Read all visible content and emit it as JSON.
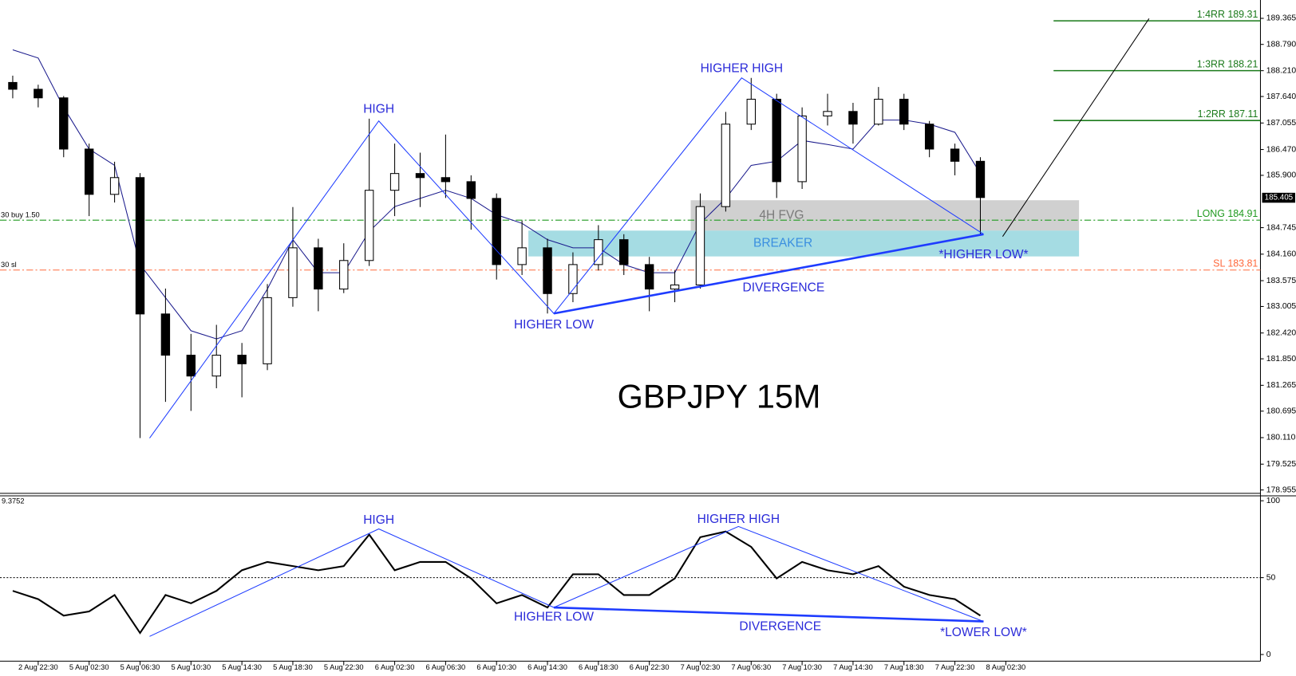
{
  "chart_data": [
    {
      "type": "candlestick",
      "title": "GBPJPY 15M",
      "x": [
        -8,
        0,
        8,
        16,
        24,
        32,
        40,
        48,
        56,
        64,
        72,
        80,
        88,
        96,
        104,
        112,
        120,
        128,
        136,
        144,
        152,
        160,
        168,
        176,
        184,
        192,
        200,
        208,
        216,
        224,
        232,
        240,
        248,
        256,
        264,
        272,
        280,
        288,
        296
      ],
      "open": [
        187.95,
        187.8,
        187.61,
        186.48,
        185.48,
        185.85,
        182.84,
        181.93,
        181.47,
        181.93,
        181.74,
        183.2,
        184.3,
        183.39,
        184.02,
        185.57,
        185.94,
        185.85,
        185.76,
        185.39,
        183.93,
        184.3,
        183.29,
        183.93,
        184.48,
        183.93,
        183.39,
        183.48,
        185.21,
        187.03,
        187.58,
        185.76,
        187.21,
        187.31,
        187.03,
        187.58,
        187.03,
        186.48,
        186.21
      ],
      "high": [
        188.1,
        187.9,
        187.65,
        186.6,
        186.2,
        185.95,
        183.4,
        182.4,
        182.6,
        182.2,
        183.5,
        185.2,
        184.5,
        184.4,
        187.15,
        186.6,
        186.4,
        186.8,
        185.9,
        185.5,
        184.9,
        184.5,
        184.2,
        184.8,
        184.6,
        184.1,
        183.8,
        185.5,
        187.3,
        188.05,
        187.7,
        187.4,
        187.7,
        187.5,
        187.85,
        187.7,
        187.1,
        186.6,
        186.3
      ],
      "low": [
        187.6,
        187.4,
        186.3,
        185.0,
        185.3,
        180.1,
        180.9,
        180.7,
        181.2,
        181.0,
        181.6,
        183.0,
        182.9,
        183.3,
        183.9,
        185.0,
        185.2,
        185.4,
        184.7,
        183.6,
        183.7,
        182.85,
        183.1,
        183.8,
        183.7,
        182.9,
        183.1,
        183.4,
        185.1,
        186.9,
        185.4,
        185.6,
        187.0,
        186.6,
        187.0,
        186.9,
        186.3,
        185.9,
        184.6
      ],
      "close": [
        187.8,
        187.61,
        186.48,
        185.48,
        185.85,
        182.84,
        181.93,
        181.47,
        181.93,
        181.74,
        183.2,
        184.3,
        183.39,
        184.02,
        185.57,
        185.94,
        185.85,
        185.76,
        185.39,
        183.93,
        184.3,
        183.29,
        183.93,
        184.48,
        183.93,
        183.39,
        183.48,
        185.21,
        187.03,
        187.58,
        185.76,
        187.21,
        187.31,
        187.03,
        187.58,
        187.03,
        186.48,
        186.21,
        185.41
      ],
      "up_color": "#ffffff",
      "down_color": "#000000",
      "wick_color": "#000000",
      "channel": {
        "color": "#1a1a8c",
        "values": [
          188.67,
          188.49,
          187.4,
          186.48,
          186.12,
          183.93,
          183.2,
          182.47,
          182.29,
          182.47,
          183.39,
          184.48,
          183.75,
          183.75,
          184.66,
          185.21,
          185.39,
          185.57,
          185.39,
          185.03,
          184.84,
          184.48,
          184.3,
          184.3,
          183.93,
          183.75,
          183.75,
          184.84,
          185.39,
          186.12,
          186.21,
          186.67,
          186.58,
          186.48,
          187.12,
          187.12,
          187.03,
          186.85,
          185.94
        ]
      },
      "zigzag": {
        "color": "#1e3cff",
        "text_color": "#2b2bd9",
        "x": [
          35,
          107,
          162,
          221,
          297
        ],
        "values": [
          180.1,
          187.1,
          182.85,
          188.05,
          184.6
        ],
        "point_labels": [
          null,
          "HIGH",
          "HIGHER LOW",
          "HIGHER HIGH",
          "*HIGHER LOW*"
        ],
        "divergence_label": "DIVERGENCE"
      },
      "zones": [
        {
          "label": "4H FVG",
          "x": [
            205,
            327
          ],
          "range": [
            184.68,
            185.35
          ],
          "color": "#c4c4c4",
          "text_color": "#7a7a7a"
        },
        {
          "label": "BREAKER",
          "x": [
            154,
            327
          ],
          "range": [
            184.11,
            184.68
          ],
          "color": "#8fd3dc",
          "text_color": "#3a8fe0"
        }
      ],
      "levels": [
        {
          "label": "LONG 184.91",
          "value": 184.91,
          "color": "#1f9a1f",
          "style": "dashdot",
          "tag": "30 buy 1.50"
        },
        {
          "label": "SL 183.81",
          "value": 183.81,
          "color": "#ff6a3d",
          "style": "dashdot",
          "tag": "30 sl"
        },
        {
          "label": "1:2RR 187.11",
          "value": 187.11,
          "color": "#1a7a1a",
          "style": "solid",
          "x_start": 319
        },
        {
          "label": "1:3RR 188.21",
          "value": 188.21,
          "color": "#1a7a1a",
          "style": "solid",
          "x_start": 319
        },
        {
          "label": "1:4RR 189.31",
          "value": 189.31,
          "color": "#1a7a1a",
          "style": "solid",
          "x_start": 319
        }
      ],
      "projection": {
        "color": "#000000",
        "x": [
          303,
          349
        ],
        "values": [
          184.55,
          189.36
        ]
      },
      "last_price": 185.405,
      "xlim": [
        -12,
        384
      ],
      "ylim": [
        178.88,
        189.77
      ],
      "yticks": [
        189.365,
        {
          "value": 188.79,
          "label": "188.790"
        },
        {
          "value": 188.21,
          "label": "188.210"
        },
        {
          "value": 187.64,
          "label": "187.640"
        },
        187.055,
        {
          "value": 186.47,
          "label": "186.470"
        },
        {
          "value": 185.9,
          "label": "185.900"
        },
        184.745,
        {
          "value": 184.16,
          "label": "184.160"
        },
        183.575,
        183.005,
        {
          "value": 182.42,
          "label": "182.420"
        },
        {
          "value": 181.85,
          "label": "181.850"
        },
        181.265,
        180.695,
        {
          "value": 180.11,
          "label": "180.110"
        },
        179.525,
        178.955
      ]
    },
    {
      "type": "line",
      "indicator_label": "9.3752",
      "color": "#000000",
      "x": [
        -8,
        0,
        8,
        16,
        24,
        32,
        40,
        48,
        56,
        64,
        72,
        80,
        88,
        96,
        104,
        112,
        120,
        128,
        136,
        144,
        152,
        160,
        168,
        176,
        184,
        192,
        200,
        208,
        216,
        224,
        232,
        240,
        248,
        256,
        264,
        272,
        280,
        288,
        296
      ],
      "values": [
        41.4,
        36.0,
        25.3,
        28.0,
        38.7,
        14.0,
        38.7,
        33.3,
        41.4,
        54.8,
        60.2,
        57.5,
        54.8,
        57.5,
        78.0,
        54.8,
        60.2,
        60.2,
        49.5,
        33.3,
        38.7,
        30.6,
        52.2,
        52.2,
        38.7,
        38.7,
        49.5,
        76.3,
        80.0,
        70.0,
        49.5,
        60.2,
        54.8,
        52.2,
        57.5,
        44.1,
        38.7,
        36.0,
        25.3
      ],
      "reference_line": 50,
      "zigzag": {
        "color": "#1e3cff",
        "text_color": "#2b2bd9",
        "x": [
          35,
          107,
          162,
          220,
          297
        ],
        "values": [
          11.8,
          81.7,
          30.6,
          83.3,
          21.5
        ],
        "point_labels": [
          null,
          "HIGH",
          "HIGHER LOW",
          "HIGHER HIGH",
          "*LOWER LOW*"
        ],
        "divergence_label": "DIVERGENCE"
      },
      "xlim": [
        -12,
        384
      ],
      "ylim": [
        -4.3,
        103.2
      ],
      "yticks": [
        0,
        50,
        100
      ],
      "xticks": [
        {
          "value": 0,
          "label": "2 Aug 22:30"
        },
        {
          "value": 16,
          "label": "5 Aug 02:30"
        },
        {
          "value": 32,
          "label": "5 Aug 06:30"
        },
        {
          "value": 48,
          "label": "5 Aug 10:30"
        },
        {
          "value": 64,
          "label": "5 Aug 14:30"
        },
        {
          "value": 80,
          "label": "5 Aug 18:30"
        },
        {
          "value": 96,
          "label": "5 Aug 22:30"
        },
        {
          "value": 112,
          "label": "6 Aug 02:30"
        },
        {
          "value": 128,
          "label": "6 Aug 06:30"
        },
        {
          "value": 144,
          "label": "6 Aug 10:30"
        },
        {
          "value": 160,
          "label": "6 Aug 14:30"
        },
        {
          "value": 176,
          "label": "6 Aug 18:30"
        },
        {
          "value": 192,
          "label": "6 Aug 22:30"
        },
        {
          "value": 208,
          "label": "7 Aug 02:30"
        },
        {
          "value": 224,
          "label": "7 Aug 06:30"
        },
        {
          "value": 240,
          "label": "7 Aug 10:30"
        },
        {
          "value": 256,
          "label": "7 Aug 14:30"
        },
        {
          "value": 272,
          "label": "7 Aug 18:30"
        },
        {
          "value": 288,
          "label": "7 Aug 22:30"
        },
        {
          "value": 304,
          "label": "8 Aug 02:30"
        }
      ]
    }
  ]
}
